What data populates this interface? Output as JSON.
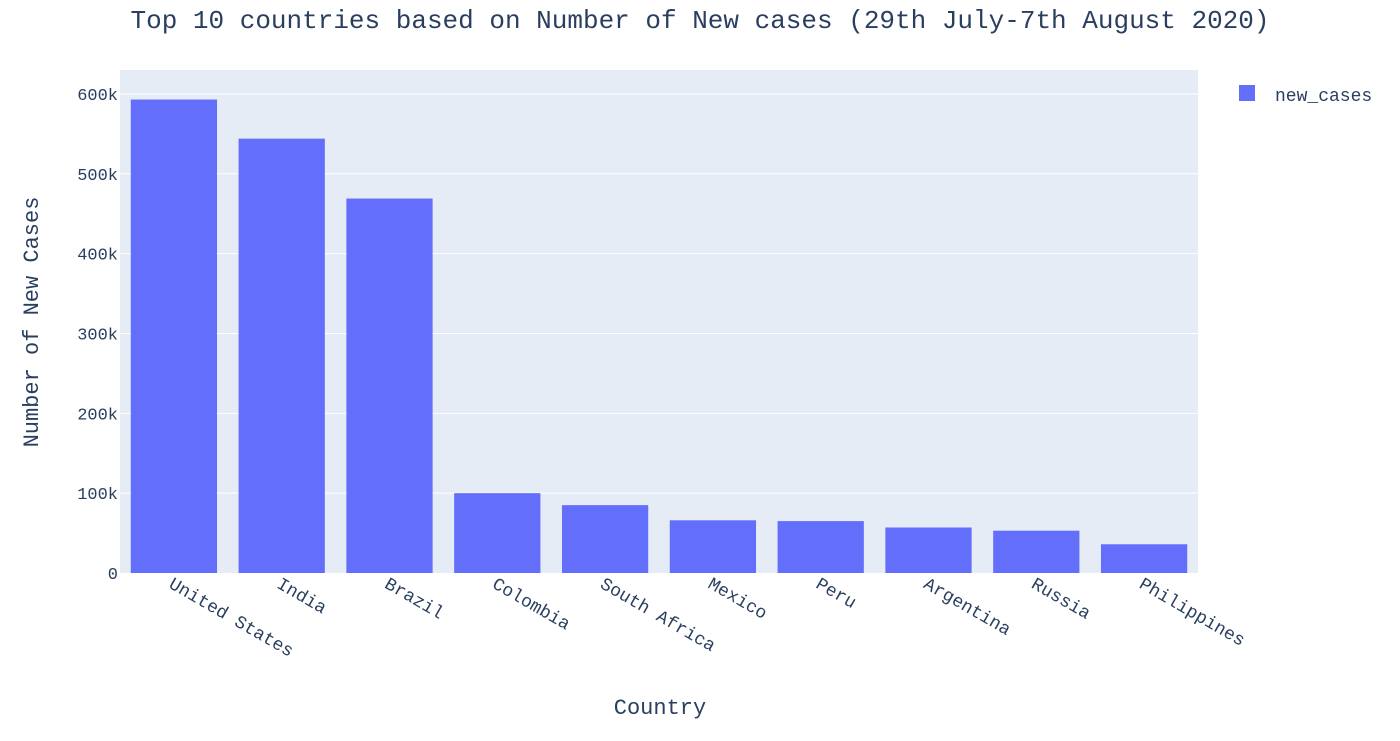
{
  "chart_data": {
    "type": "bar",
    "title": "Top 10 countries based on Number of New cases (29th July-7th August 2020)",
    "xlabel": "Country",
    "ylabel": "Number of New Cases",
    "categories": [
      "United States",
      "India",
      "Brazil",
      "Colombia",
      "South Africa",
      "Mexico",
      "Peru",
      "Argentina",
      "Russia",
      "Philippines"
    ],
    "series": [
      {
        "name": "new_cases",
        "values": [
          593000,
          544000,
          469000,
          100000,
          85000,
          66000,
          65000,
          57000,
          53000,
          36000
        ]
      }
    ],
    "ylim": [
      0,
      630000
    ],
    "yticks": [
      0,
      100000,
      200000,
      300000,
      400000,
      500000,
      600000
    ],
    "ytick_labels": [
      "0",
      "100k",
      "200k",
      "300k",
      "400k",
      "500k",
      "600k"
    ],
    "grid": true,
    "legend_position": "top-right",
    "colors": {
      "bar": "#636efa",
      "plot_background": "#e5ecf6",
      "gridline": "#ffffff",
      "text": "#2a3f5f"
    }
  }
}
